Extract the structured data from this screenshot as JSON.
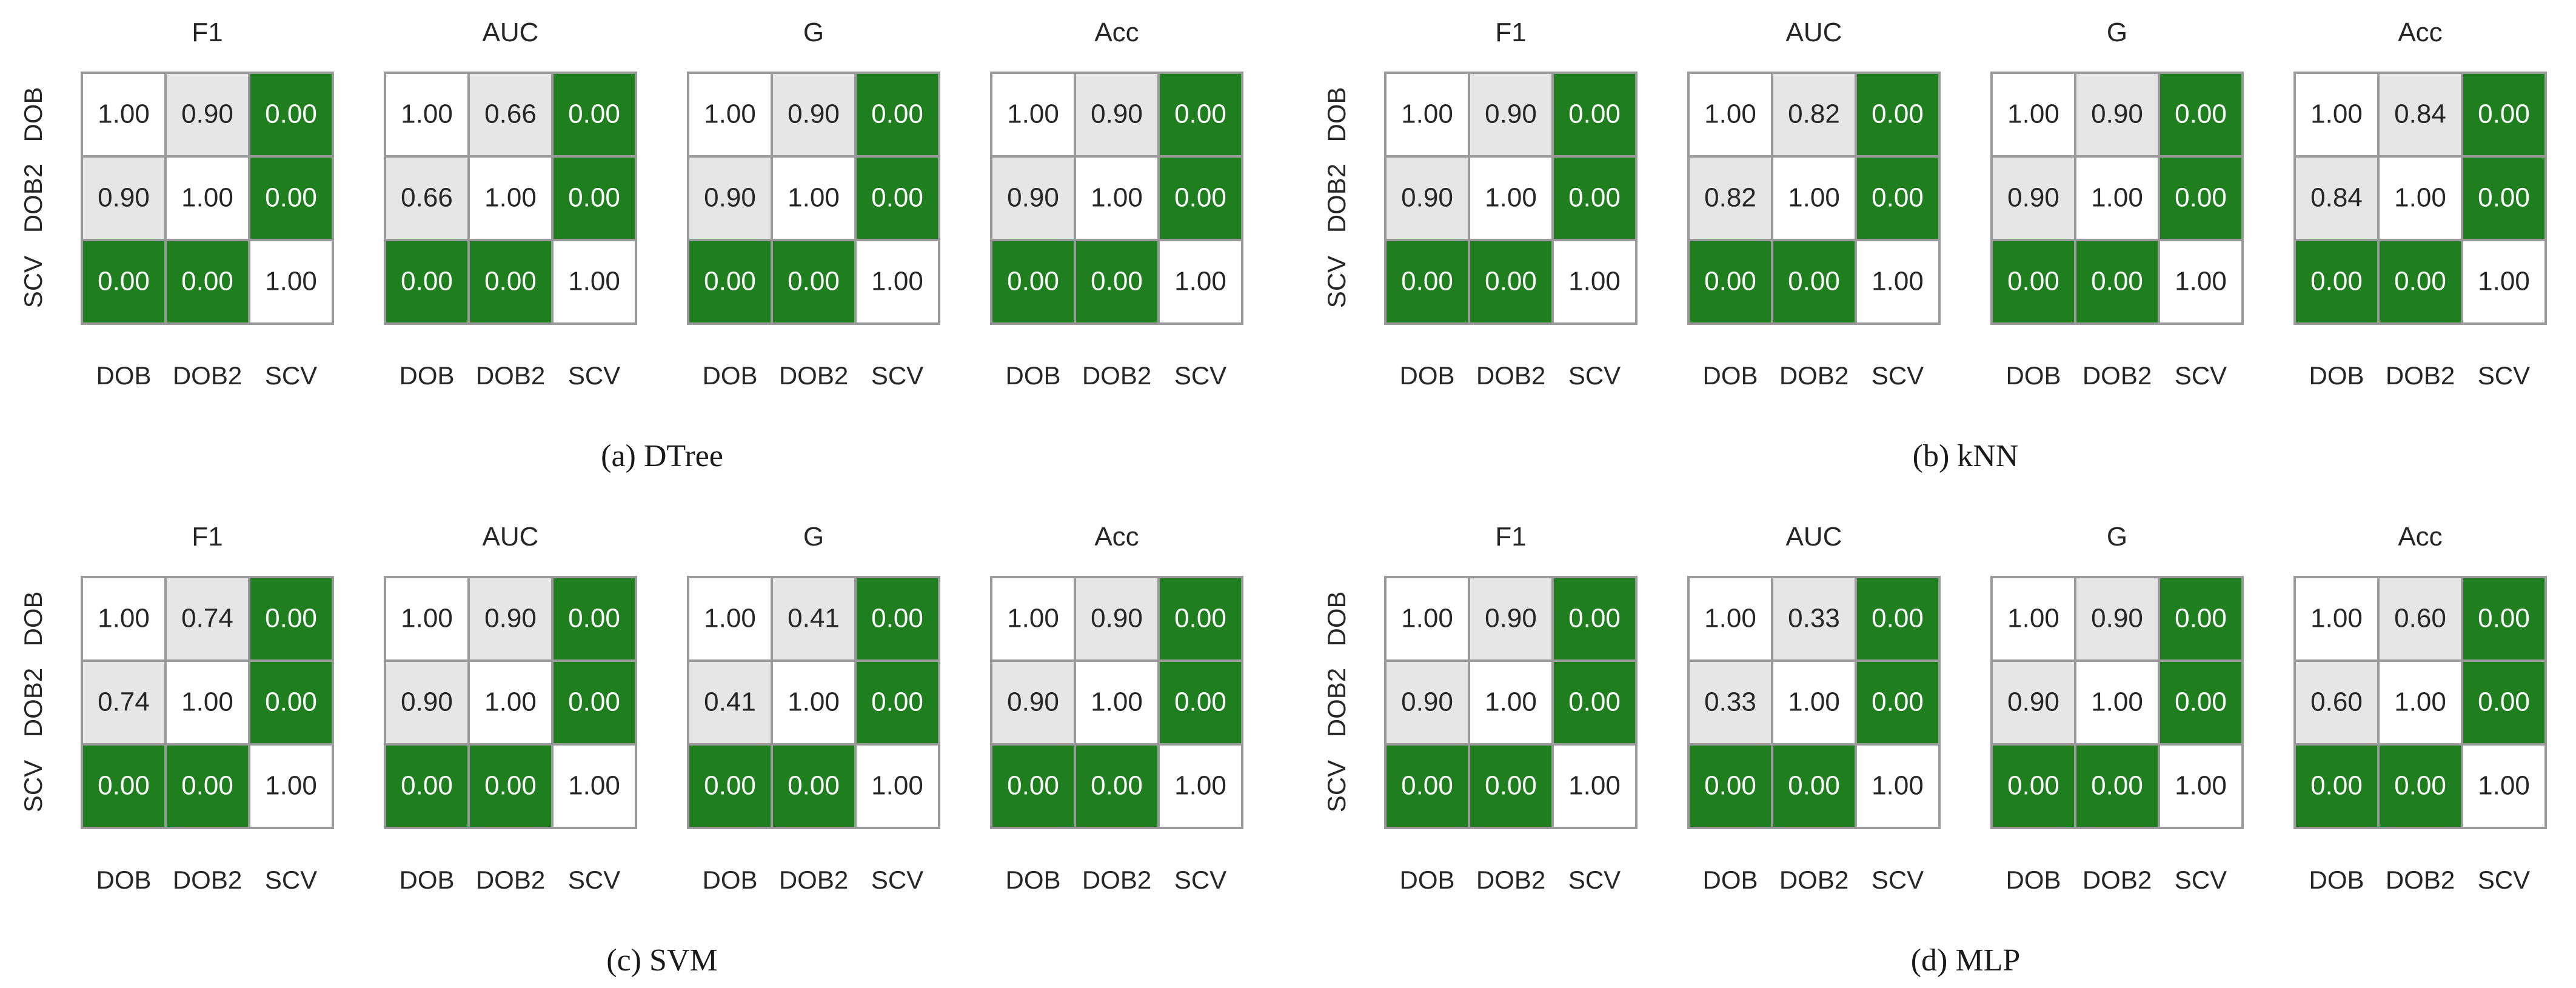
{
  "colors": {
    "significant": "#1f7f1f",
    "mid": "#e6e6e6",
    "diagonal": "#ffffff",
    "grid": "#9a9a9a",
    "text_dark": "#262626",
    "text_light": "#ffffff"
  },
  "labels": [
    "DOB",
    "DOB2",
    "SCV"
  ],
  "chart_data": [
    {
      "type": "heatmap",
      "caption": "(a) DTree",
      "panels": [
        {
          "title": "F1",
          "matrix": [
            [
              1.0,
              0.9,
              0.0
            ],
            [
              0.9,
              1.0,
              0.0
            ],
            [
              0.0,
              0.0,
              1.0
            ]
          ]
        },
        {
          "title": "AUC",
          "matrix": [
            [
              1.0,
              0.66,
              0.0
            ],
            [
              0.66,
              1.0,
              0.0
            ],
            [
              0.0,
              0.0,
              1.0
            ]
          ]
        },
        {
          "title": "G",
          "matrix": [
            [
              1.0,
              0.9,
              0.0
            ],
            [
              0.9,
              1.0,
              0.0
            ],
            [
              0.0,
              0.0,
              1.0
            ]
          ]
        },
        {
          "title": "Acc",
          "matrix": [
            [
              1.0,
              0.9,
              0.0
            ],
            [
              0.9,
              1.0,
              0.0
            ],
            [
              0.0,
              0.0,
              1.0
            ]
          ]
        }
      ]
    },
    {
      "type": "heatmap",
      "caption": "(b) kNN",
      "panels": [
        {
          "title": "F1",
          "matrix": [
            [
              1.0,
              0.9,
              0.0
            ],
            [
              0.9,
              1.0,
              0.0
            ],
            [
              0.0,
              0.0,
              1.0
            ]
          ]
        },
        {
          "title": "AUC",
          "matrix": [
            [
              1.0,
              0.82,
              0.0
            ],
            [
              0.82,
              1.0,
              0.0
            ],
            [
              0.0,
              0.0,
              1.0
            ]
          ]
        },
        {
          "title": "G",
          "matrix": [
            [
              1.0,
              0.9,
              0.0
            ],
            [
              0.9,
              1.0,
              0.0
            ],
            [
              0.0,
              0.0,
              1.0
            ]
          ]
        },
        {
          "title": "Acc",
          "matrix": [
            [
              1.0,
              0.84,
              0.0
            ],
            [
              0.84,
              1.0,
              0.0
            ],
            [
              0.0,
              0.0,
              1.0
            ]
          ]
        }
      ]
    },
    {
      "type": "heatmap",
      "caption": "(c) SVM",
      "panels": [
        {
          "title": "F1",
          "matrix": [
            [
              1.0,
              0.74,
              0.0
            ],
            [
              0.74,
              1.0,
              0.0
            ],
            [
              0.0,
              0.0,
              1.0
            ]
          ]
        },
        {
          "title": "AUC",
          "matrix": [
            [
              1.0,
              0.9,
              0.0
            ],
            [
              0.9,
              1.0,
              0.0
            ],
            [
              0.0,
              0.0,
              1.0
            ]
          ]
        },
        {
          "title": "G",
          "matrix": [
            [
              1.0,
              0.41,
              0.0
            ],
            [
              0.41,
              1.0,
              0.0
            ],
            [
              0.0,
              0.0,
              1.0
            ]
          ]
        },
        {
          "title": "Acc",
          "matrix": [
            [
              1.0,
              0.9,
              0.0
            ],
            [
              0.9,
              1.0,
              0.0
            ],
            [
              0.0,
              0.0,
              1.0
            ]
          ]
        }
      ]
    },
    {
      "type": "heatmap",
      "caption": "(d) MLP",
      "panels": [
        {
          "title": "F1",
          "matrix": [
            [
              1.0,
              0.9,
              0.0
            ],
            [
              0.9,
              1.0,
              0.0
            ],
            [
              0.0,
              0.0,
              1.0
            ]
          ]
        },
        {
          "title": "AUC",
          "matrix": [
            [
              1.0,
              0.33,
              0.0
            ],
            [
              0.33,
              1.0,
              0.0
            ],
            [
              0.0,
              0.0,
              1.0
            ]
          ]
        },
        {
          "title": "G",
          "matrix": [
            [
              1.0,
              0.9,
              0.0
            ],
            [
              0.9,
              1.0,
              0.0
            ],
            [
              0.0,
              0.0,
              1.0
            ]
          ]
        },
        {
          "title": "Acc",
          "matrix": [
            [
              1.0,
              0.6,
              0.0
            ],
            [
              0.6,
              1.0,
              0.0
            ],
            [
              0.0,
              0.0,
              1.0
            ]
          ]
        }
      ]
    }
  ]
}
